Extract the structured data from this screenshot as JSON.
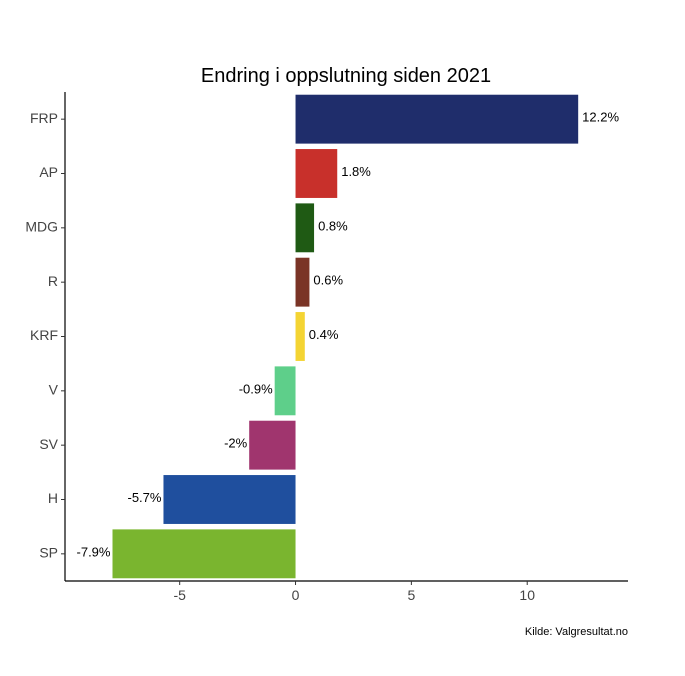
{
  "chart_data": {
    "type": "bar",
    "orientation": "horizontal",
    "title": "Endring i oppslutning siden 2021",
    "caption": "Kilde: Valgresultat.no",
    "xlabel": "",
    "ylabel": "",
    "categories": [
      "FRP",
      "AP",
      "MDG",
      "R",
      "KRF",
      "V",
      "SV",
      "H",
      "SP"
    ],
    "values": [
      12.2,
      1.8,
      0.8,
      0.6,
      0.4,
      -0.9,
      -2,
      -5.7,
      -7.9
    ],
    "labels": [
      "12.2%",
      "1.8%",
      "0.8%",
      "0.6%",
      "0.4%",
      "-0.9%",
      "-2%",
      "-5.7%",
      "-7.9%"
    ],
    "colors": [
      "#1f2d6b",
      "#c8302b",
      "#1f5a14",
      "#7a3426",
      "#f4d433",
      "#5ecf8a",
      "#a0356e",
      "#1f4f9e",
      "#7ab52f"
    ],
    "xlim": [
      -9.95,
      14.35
    ],
    "xticks": [
      -5,
      0,
      5,
      10
    ],
    "xtick_labels": [
      "-5",
      "0",
      "5",
      "10"
    ],
    "grid": false,
    "legend": "none"
  }
}
